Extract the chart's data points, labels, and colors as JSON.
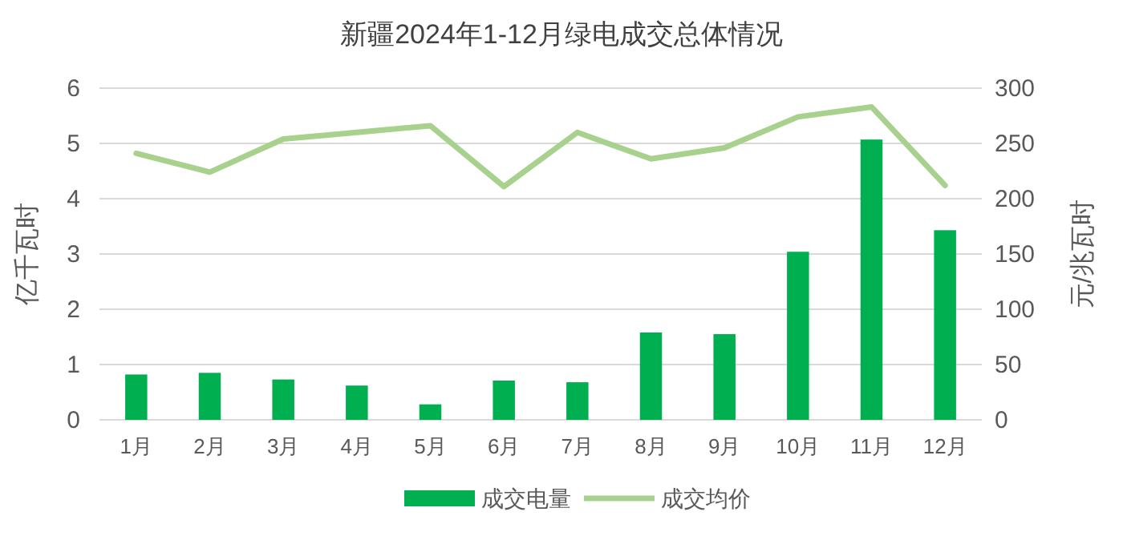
{
  "chart_data": {
    "type": "bar",
    "title": "新疆2024年1-12月绿电成交总体情况",
    "ylabel": "亿千瓦时",
    "y2label": "元/兆瓦时",
    "categories": [
      "1月",
      "2月",
      "3月",
      "4月",
      "5月",
      "6月",
      "7月",
      "8月",
      "9月",
      "10月",
      "11月",
      "12月"
    ],
    "series": [
      {
        "name": "成交电量",
        "color": "#00b050",
        "values": [
          0.82,
          0.85,
          0.73,
          0.62,
          0.28,
          0.71,
          0.68,
          1.58,
          1.55,
          3.04,
          5.07,
          3.43
        ]
      },
      {
        "name": "成交均价",
        "type": "line",
        "axis": "y2",
        "color": "#a9d18e",
        "values": [
          241,
          224,
          254,
          260,
          266,
          211,
          260,
          236,
          246,
          274,
          283,
          212
        ]
      }
    ],
    "ylim": [
      0,
      6
    ],
    "yticks": [
      0,
      1,
      2,
      3,
      4,
      5,
      6
    ],
    "y2lim": [
      0,
      300
    ],
    "y2ticks": [
      0,
      50,
      100,
      150,
      200,
      250,
      300
    ],
    "grid": "y",
    "legend": "bottom",
    "marker": "none"
  }
}
